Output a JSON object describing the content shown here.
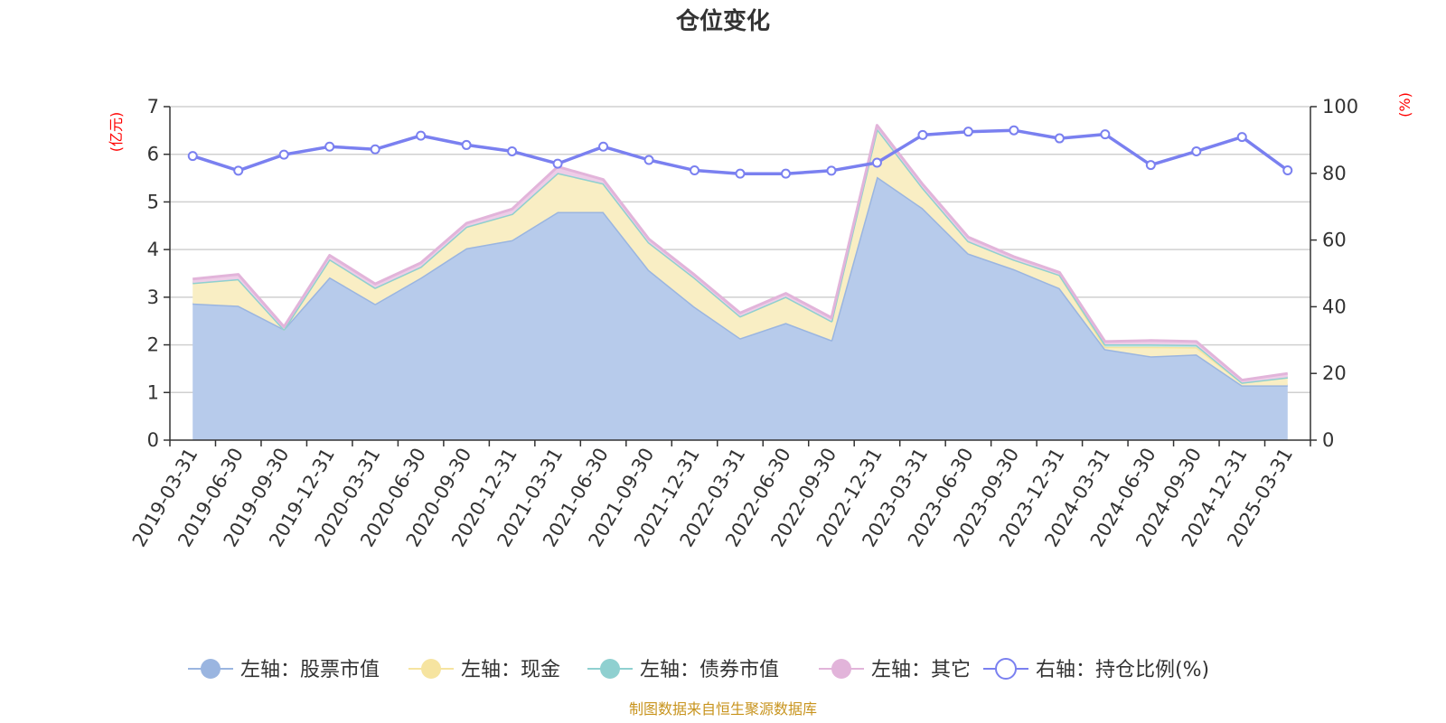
{
  "chart_data": {
    "type": "area",
    "title": "仓位变化",
    "left_axis": {
      "label": "(亿元)",
      "min": 0,
      "max": 7,
      "ticks": [
        0,
        1,
        2,
        3,
        4,
        5,
        6,
        7
      ]
    },
    "right_axis": {
      "label": "(%)",
      "min": 0,
      "max": 100,
      "ticks": [
        0,
        20,
        40,
        60,
        80,
        100
      ]
    },
    "categories": [
      "2019-03-31",
      "2019-06-30",
      "2019-09-30",
      "2019-12-31",
      "2020-03-31",
      "2020-06-30",
      "2020-09-30",
      "2020-12-31",
      "2021-03-31",
      "2021-06-30",
      "2021-09-30",
      "2021-12-31",
      "2022-03-31",
      "2022-06-30",
      "2022-09-30",
      "2022-12-31",
      "2023-03-31",
      "2023-06-30",
      "2023-09-30",
      "2023-12-31",
      "2024-03-31",
      "2024-06-30",
      "2024-09-30",
      "2024-12-31",
      "2025-03-31"
    ],
    "stacked_series": [
      {
        "name": "左轴：股票市值",
        "color": "#9ab5e0",
        "fill": "#b7cbeb",
        "values": [
          2.87,
          2.82,
          2.33,
          3.42,
          2.86,
          3.41,
          4.03,
          4.2,
          4.79,
          4.79,
          3.57,
          2.8,
          2.14,
          2.46,
          2.1,
          5.53,
          4.87,
          3.92,
          3.59,
          3.19,
          1.91,
          1.76,
          1.8,
          1.15,
          1.15
        ]
      },
      {
        "name": "左轴：现金",
        "color": "#f6e4a0",
        "fill": "#f9eec4",
        "values": [
          0.43,
          0.56,
          0.0,
          0.38,
          0.34,
          0.23,
          0.45,
          0.55,
          0.82,
          0.6,
          0.58,
          0.61,
          0.46,
          0.55,
          0.4,
          1.01,
          0.43,
          0.26,
          0.2,
          0.28,
          0.05,
          0.2,
          0.15,
          0.06,
          0.17
        ]
      },
      {
        "name": "左轴：债券市值",
        "color": "#8fd0d0",
        "fill": "#c4e6e2",
        "values": [
          0.0,
          0.0,
          0.0,
          0.0,
          0.0,
          0.0,
          0.0,
          0.0,
          0.0,
          0.0,
          0.0,
          0.0,
          0.0,
          0.0,
          0.0,
          0.0,
          0.0,
          0.0,
          0.0,
          0.0,
          0.05,
          0.05,
          0.05,
          0.0,
          0.0
        ]
      },
      {
        "name": "左轴：其它",
        "color": "#e2b4da",
        "fill": "#eecde7",
        "values": [
          0.08,
          0.1,
          0.05,
          0.08,
          0.08,
          0.08,
          0.07,
          0.1,
          0.13,
          0.08,
          0.07,
          0.06,
          0.07,
          0.07,
          0.07,
          0.07,
          0.07,
          0.08,
          0.06,
          0.05,
          0.06,
          0.08,
          0.07,
          0.05,
          0.08
        ]
      }
    ],
    "line_series": {
      "name": "右轴：持仓比例(%)",
      "color": "#7a80f0",
      "values": [
        85.2,
        80.8,
        85.6,
        88.0,
        87.2,
        91.3,
        88.5,
        86.6,
        82.9,
        88.0,
        84.0,
        80.9,
        79.9,
        79.9,
        80.8,
        83.2,
        91.5,
        92.5,
        92.9,
        90.5,
        91.7,
        82.5,
        86.6,
        90.9,
        80.9
      ]
    },
    "grid": true,
    "legend_position": "bottom"
  },
  "source_text": "制图数据来自恒生聚源数据库"
}
